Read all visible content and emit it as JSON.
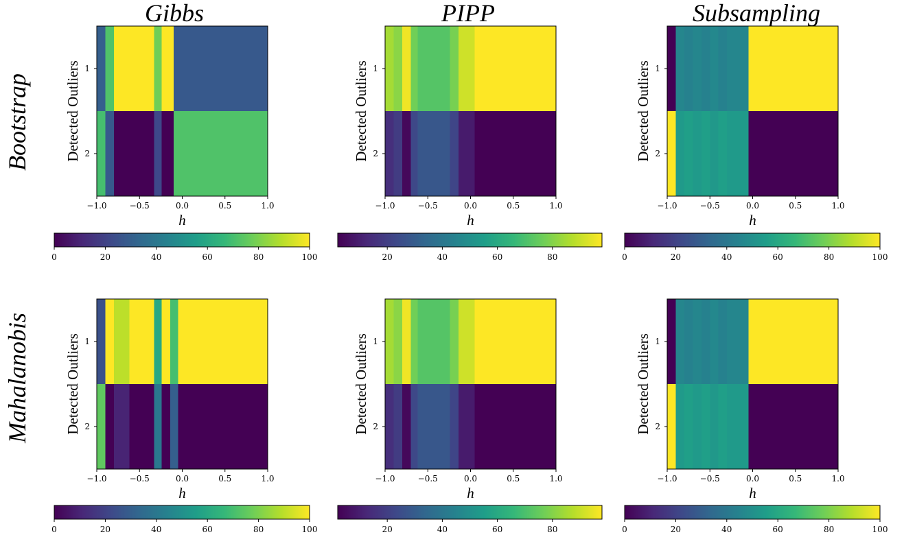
{
  "figure": {
    "column_titles": [
      "Gibbs",
      "PIPP",
      "Subsampling"
    ],
    "row_titles": [
      "Bootstrap",
      "Mahalanobis"
    ]
  },
  "colormap": [
    "#440154",
    "#482878",
    "#3e4989",
    "#31688e",
    "#26828e",
    "#1f9e89",
    "#35b779",
    "#6ece58",
    "#b5de2b",
    "#fde725"
  ],
  "chart_data": [
    {
      "type": "heatmap",
      "id": "bootstrap-gibbs",
      "title": "",
      "row": "Bootstrap",
      "column": "Gibbs",
      "xlabel": "h",
      "ylabel": "Detected Outliers",
      "xlim": [
        -1.0,
        1.0
      ],
      "x_ticks": [
        "−1.0",
        "−0.5",
        "0.0",
        "0.5",
        "1.0"
      ],
      "y_ticks": [
        "1",
        "2"
      ],
      "bins": [
        -1.0,
        -0.9,
        -0.8,
        -0.33,
        -0.24,
        -0.1,
        1.0
      ],
      "rows": [
        {
          "category": "1",
          "values": [
            30,
            72,
            100,
            78,
            100,
            28,
            100
          ]
        },
        {
          "category": "2",
          "values": [
            70,
            28,
            0,
            22,
            0,
            72,
            0
          ]
        }
      ],
      "colorbar": {
        "min": 0,
        "max": 100,
        "ticks": [
          "0",
          "20",
          "40",
          "60",
          "80",
          "100"
        ],
        "tick_values": [
          0,
          20,
          40,
          60,
          80,
          100
        ]
      }
    },
    {
      "type": "heatmap",
      "id": "bootstrap-pipp",
      "title": "",
      "row": "Bootstrap",
      "column": "PIPP",
      "xlabel": "h",
      "ylabel": "Detected Outliers",
      "xlim": [
        -1.0,
        1.0
      ],
      "x_ticks": [
        "−1.0",
        "−0.5",
        "0.0",
        "0.5",
        "1.0"
      ],
      "y_ticks": [
        "1",
        "2"
      ],
      "bins": [
        -1.0,
        -0.9,
        -0.8,
        -0.7,
        -0.62,
        -0.24,
        -0.14,
        0.05,
        1.0
      ],
      "rows": [
        {
          "category": "1",
          "values": [
            85,
            81,
            96,
            77,
            72,
            78,
            91,
            98
          ]
        },
        {
          "category": "2",
          "values": [
            15,
            19,
            4,
            23,
            28,
            22,
            9,
            2
          ]
        }
      ],
      "colorbar": {
        "min": 2,
        "max": 98,
        "ticks": [
          "20",
          "40",
          "60",
          "80"
        ],
        "tick_values": [
          20,
          40,
          60,
          80
        ]
      }
    },
    {
      "type": "heatmap",
      "id": "bootstrap-subsampling",
      "title": "",
      "row": "Bootstrap",
      "column": "Subsampling",
      "xlabel": "h",
      "ylabel": "Detected Outliers",
      "xlim": [
        -1.0,
        1.0
      ],
      "x_ticks": [
        "−1.0",
        "−0.5",
        "0.0",
        "0.5",
        "1.0"
      ],
      "y_ticks": [
        "1",
        "2"
      ],
      "bins": [
        -1.0,
        -0.9,
        -0.8,
        -0.7,
        -0.6,
        -0.5,
        -0.4,
        -0.3,
        -0.05,
        1.0
      ],
      "rows": [
        {
          "category": "1",
          "values": [
            0,
            46,
            44,
            46,
            44,
            47,
            44,
            46,
            100
          ]
        },
        {
          "category": "2",
          "values": [
            100,
            54,
            56,
            54,
            56,
            53,
            56,
            54,
            0
          ]
        }
      ],
      "colorbar": {
        "min": 0,
        "max": 100,
        "ticks": [
          "0",
          "20",
          "40",
          "60",
          "80",
          "100"
        ],
        "tick_values": [
          0,
          20,
          40,
          60,
          80,
          100
        ]
      }
    },
    {
      "type": "heatmap",
      "id": "mahalanobis-gibbs",
      "title": "",
      "row": "Mahalanobis",
      "column": "Gibbs",
      "xlabel": "h",
      "ylabel": "Detected Outliers",
      "xlim": [
        -1.0,
        1.0
      ],
      "x_ticks": [
        "−1.0",
        "−0.5",
        "0.0",
        "0.5",
        "1.0"
      ],
      "y_ticks": [
        "1",
        "2"
      ],
      "bins": [
        -1.0,
        -0.9,
        -0.8,
        -0.62,
        -0.33,
        -0.24,
        -0.14,
        -0.05,
        1.0
      ],
      "rows": [
        {
          "category": "1",
          "values": [
            25,
            100,
            90,
            100,
            60,
            100,
            70,
            100
          ]
        },
        {
          "category": "2",
          "values": [
            75,
            0,
            10,
            0,
            40,
            0,
            30,
            0
          ]
        }
      ],
      "colorbar": {
        "min": 0,
        "max": 100,
        "ticks": [
          "0",
          "20",
          "40",
          "60",
          "80",
          "100"
        ],
        "tick_values": [
          0,
          20,
          40,
          60,
          80,
          100
        ]
      }
    },
    {
      "type": "heatmap",
      "id": "mahalanobis-pipp",
      "title": "",
      "row": "Mahalanobis",
      "column": "PIPP",
      "xlabel": "h",
      "ylabel": "Detected Outliers",
      "xlim": [
        -1.0,
        1.0
      ],
      "x_ticks": [
        "−1.0",
        "−0.5",
        "0.0",
        "0.5",
        "1.0"
      ],
      "y_ticks": [
        "1",
        "2"
      ],
      "bins": [
        -1.0,
        -0.9,
        -0.8,
        -0.7,
        -0.62,
        -0.24,
        -0.14,
        0.05,
        1.0
      ],
      "rows": [
        {
          "category": "1",
          "values": [
            85,
            81,
            96,
            77,
            72,
            78,
            91,
            98
          ]
        },
        {
          "category": "2",
          "values": [
            15,
            19,
            4,
            23,
            28,
            22,
            9,
            2
          ]
        }
      ],
      "colorbar": {
        "min": 2,
        "max": 98,
        "ticks": [
          "20",
          "40",
          "60",
          "80"
        ],
        "tick_values": [
          20,
          40,
          60,
          80
        ]
      }
    },
    {
      "type": "heatmap",
      "id": "mahalanobis-subsampling",
      "title": "",
      "row": "Mahalanobis",
      "column": "Subsampling",
      "xlabel": "h",
      "ylabel": "Detected Outliers",
      "xlim": [
        -1.0,
        1.0
      ],
      "x_ticks": [
        "−1.0",
        "−0.5",
        "0.0",
        "0.5",
        "1.0"
      ],
      "y_ticks": [
        "1",
        "2"
      ],
      "bins": [
        -1.0,
        -0.9,
        -0.8,
        -0.7,
        -0.6,
        -0.5,
        -0.4,
        -0.3,
        -0.05,
        1.0
      ],
      "rows": [
        {
          "category": "1",
          "values": [
            0,
            46,
            44,
            46,
            44,
            47,
            44,
            46,
            100
          ]
        },
        {
          "category": "2",
          "values": [
            100,
            54,
            56,
            54,
            56,
            53,
            56,
            54,
            0
          ]
        }
      ],
      "colorbar": {
        "min": 0,
        "max": 100,
        "ticks": [
          "0",
          "20",
          "40",
          "60",
          "80",
          "100"
        ],
        "tick_values": [
          0,
          20,
          40,
          60,
          80,
          100
        ]
      }
    }
  ]
}
